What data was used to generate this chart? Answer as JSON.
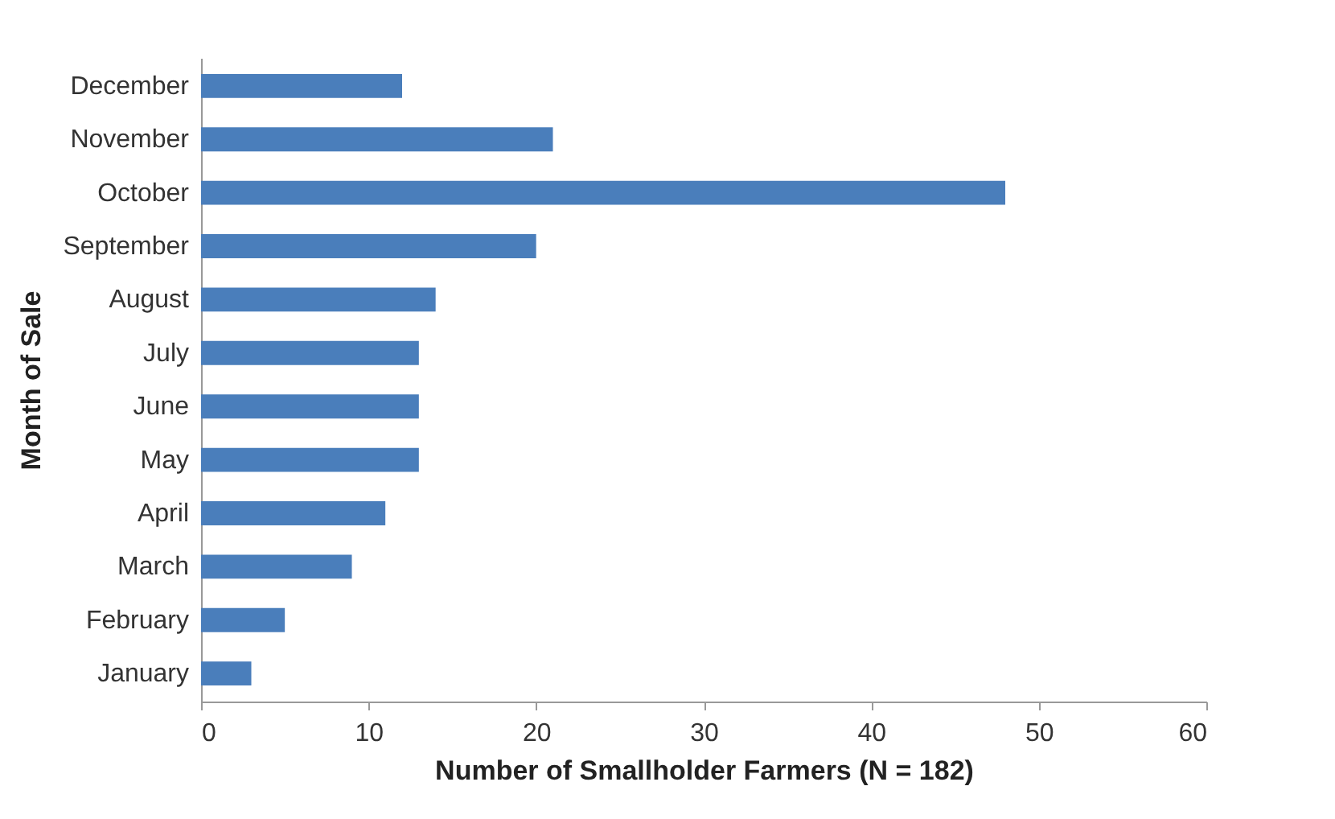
{
  "chart_data": {
    "type": "bar",
    "orientation": "horizontal",
    "categories": [
      "December",
      "November",
      "October",
      "September",
      "August",
      "July",
      "June",
      "May",
      "April",
      "March",
      "February",
      "January"
    ],
    "values": [
      12,
      21,
      48,
      20,
      14,
      13,
      13,
      13,
      11,
      9,
      5,
      3
    ],
    "color": "#4a7ebb",
    "xlabel": "Number of Smallholder Farmers (N = 182)",
    "ylabel": "Month of Sale",
    "xlim": [
      0,
      60
    ],
    "xticks": [
      0,
      10,
      20,
      30,
      40,
      50,
      60
    ],
    "grid": false
  }
}
